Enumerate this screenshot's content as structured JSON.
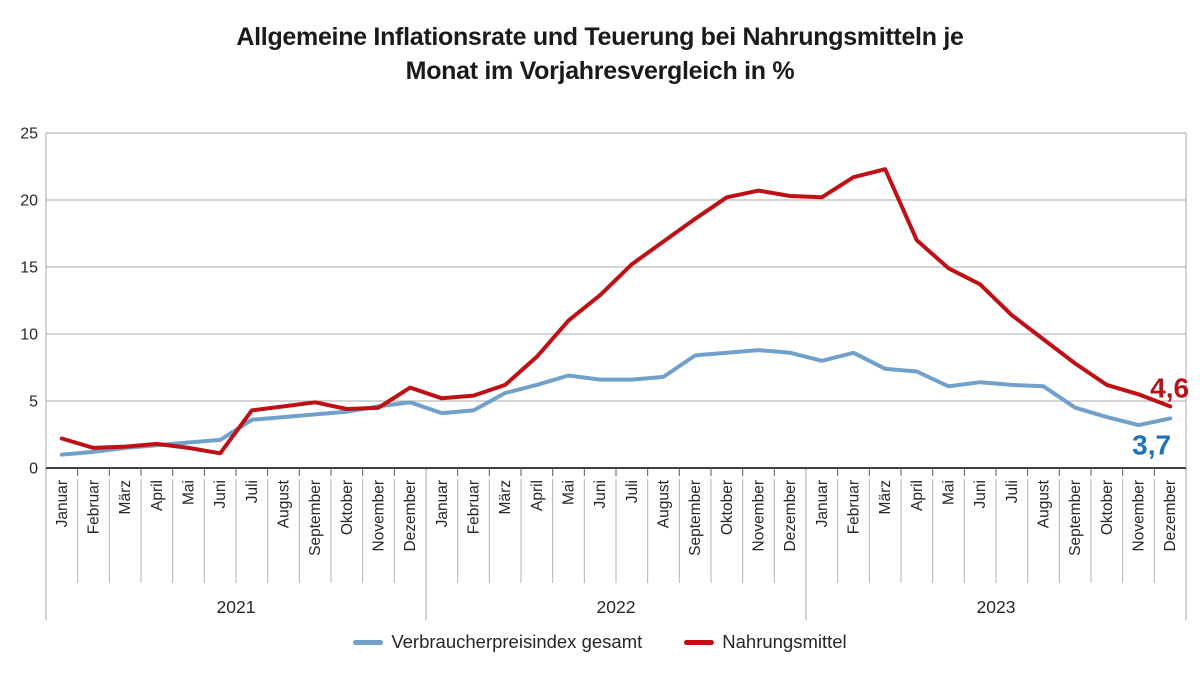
{
  "title": {
    "line1": "Allgemeine Inflationsrate und Teuerung bei Nahrungsmitteln je",
    "line2": "Monat im Vorjahresvergleich in %"
  },
  "chart_data": {
    "type": "line",
    "title": "Allgemeine Inflationsrate und Teuerung bei Nahrungsmitteln je Monat im Vorjahresvergleich in %",
    "ylabel": "",
    "xlabel": "",
    "ylim": [
      0,
      25
    ],
    "yticks": [
      0,
      5,
      10,
      15,
      20,
      25
    ],
    "grid": "horizontal",
    "legend_position": "bottom",
    "month_names": [
      "Januar",
      "Februar",
      "März",
      "April",
      "Mai",
      "Juni",
      "Juli",
      "August",
      "September",
      "Oktober",
      "November",
      "Dezember"
    ],
    "years": [
      {
        "label": "2021"
      },
      {
        "label": "2022"
      },
      {
        "label": "2023"
      }
    ],
    "colors": {
      "grid": "#a8a8a8",
      "axis": "#3f3f3f",
      "tick": "#595959",
      "text": "#262626"
    },
    "series": [
      {
        "name": "Verbraucherpreisindex gesamt",
        "color": "#71a1cb",
        "end_label": "3,7",
        "end_label_color": "#2171b5",
        "values": [
          1.0,
          1.2,
          1.5,
          1.7,
          1.9,
          2.1,
          3.6,
          3.8,
          4.0,
          4.2,
          4.6,
          4.9,
          4.1,
          4.3,
          5.6,
          6.2,
          6.9,
          6.6,
          6.6,
          6.8,
          8.4,
          8.6,
          8.8,
          8.6,
          8.0,
          8.6,
          7.4,
          7.2,
          6.1,
          6.4,
          6.2,
          6.1,
          4.5,
          3.8,
          3.2,
          3.7
        ]
      },
      {
        "name": "Nahrungsmittel",
        "color": "#bf1016",
        "end_label": "4,6",
        "end_label_color": "#b5121a",
        "values": [
          2.2,
          1.5,
          1.6,
          1.8,
          1.5,
          1.1,
          4.3,
          4.6,
          4.9,
          4.4,
          4.5,
          6.0,
          5.2,
          5.4,
          6.2,
          8.3,
          11.0,
          12.9,
          15.2,
          16.9,
          18.6,
          20.2,
          20.7,
          20.3,
          20.2,
          21.7,
          22.3,
          17.0,
          14.9,
          13.7,
          11.4,
          9.6,
          7.8,
          6.2,
          5.5,
          4.6
        ]
      }
    ]
  },
  "legend": {
    "items": [
      {
        "label": "Verbraucherpreisindex gesamt"
      },
      {
        "label": "Nahrungsmittel"
      }
    ]
  }
}
